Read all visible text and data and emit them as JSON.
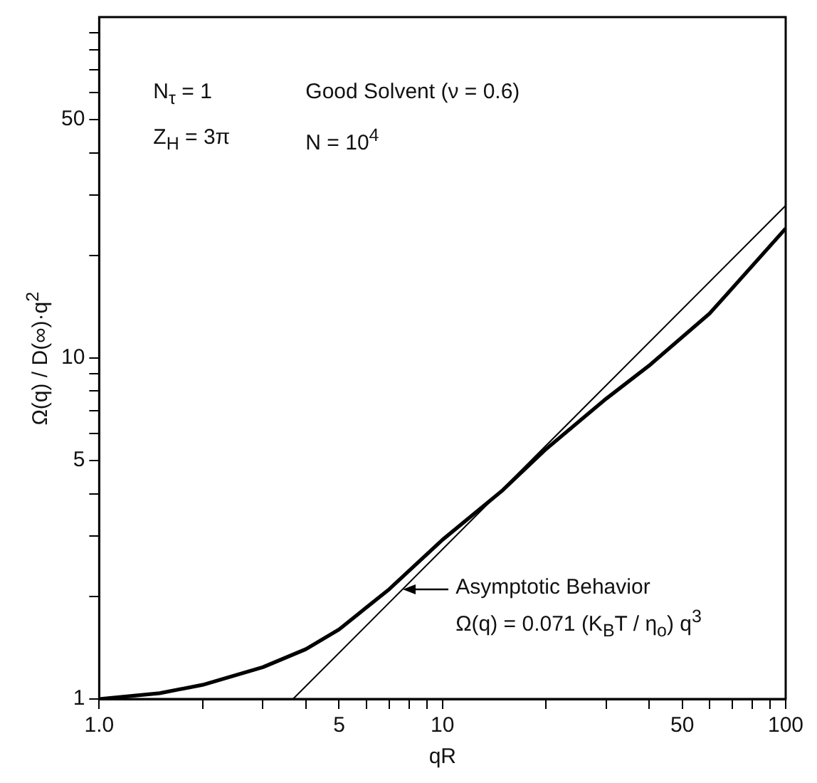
{
  "chart_data": {
    "type": "line",
    "xlabel": "qR",
    "ylabel": "Ω(q) / D(∞)·q$^{2}$",
    "log": "xy",
    "grid": false,
    "legend": false,
    "marker": "none",
    "line_style": "solid",
    "x": [
      1,
      1.5,
      2,
      3,
      4,
      5,
      7,
      10,
      15,
      20,
      30,
      40,
      60,
      100
    ],
    "xlim": [
      1,
      100
    ],
    "ylim": [
      1,
      100
    ],
    "xticks": [
      {
        "value": 1,
        "label": "1.0"
      },
      {
        "value": 2,
        "label": null
      },
      {
        "value": 3,
        "label": null
      },
      {
        "value": 4,
        "label": null
      },
      5,
      {
        "value": 6,
        "label": null
      },
      {
        "value": 7,
        "label": null
      },
      {
        "value": 8,
        "label": null
      },
      {
        "value": 9,
        "label": null
      },
      10,
      {
        "value": 20,
        "label": null
      },
      {
        "value": 30,
        "label": null
      },
      {
        "value": 40,
        "label": null
      },
      50,
      {
        "value": 60,
        "label": null
      },
      {
        "value": 70,
        "label": null
      },
      {
        "value": 80,
        "label": null
      },
      {
        "value": 90,
        "label": null
      },
      100
    ],
    "yticks": [
      1,
      {
        "value": 2,
        "label": null
      },
      {
        "value": 3,
        "label": null
      },
      {
        "value": 4,
        "label": null
      },
      5,
      {
        "value": 6,
        "label": null
      },
      {
        "value": 7,
        "label": null
      },
      {
        "value": 8,
        "label": null
      },
      {
        "value": 9,
        "label": null
      },
      10,
      {
        "value": 20,
        "label": null
      },
      {
        "value": 30,
        "label": null
      },
      {
        "value": 40,
        "label": null
      },
      50,
      {
        "value": 60,
        "label": null
      },
      {
        "value": 70,
        "label": null
      },
      {
        "value": 80,
        "label": null
      },
      {
        "value": 90,
        "label": null
      }
    ],
    "series": [
      {
        "color": "#000000",
        "values": [
          1,
          1.04,
          1.1,
          1.24,
          1.4,
          1.6,
          2.1,
          2.93,
          4.1,
          5.4,
          7.6,
          9.5,
          13.5,
          24
        ]
      },
      {
        "type": "line",
        "color": "#000000",
        "x": [
          3.67,
          100
        ],
        "values": [
          1,
          28
        ]
      }
    ],
    "annotations": [
      "N$_{τ}$ = 1",
      "Good Solvent (ν = 0.6)",
      "Z$_{H}$ = 3π",
      "N = 10$^{4}$",
      {
        "text": "Asymptotic Behavior\nΩ(q) = 0.071 (K$_{B}$T / η$_{o}$) q$^{3}$",
        "x": 7.6,
        "y": 2.1
      }
    ]
  }
}
